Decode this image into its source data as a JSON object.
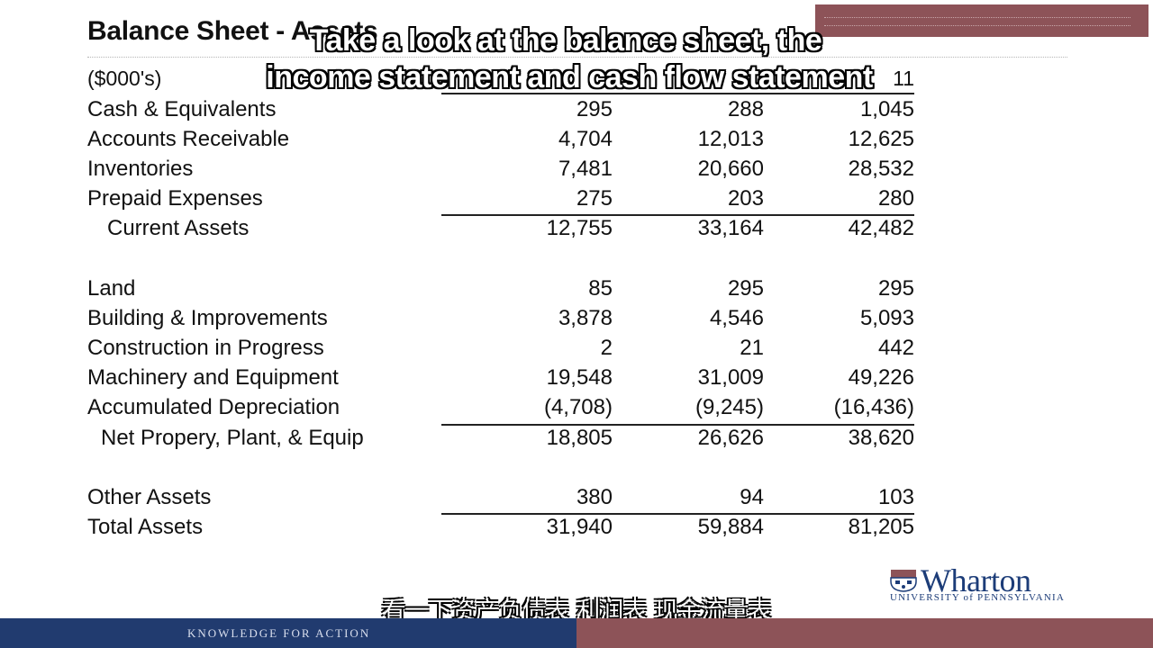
{
  "slide": {
    "title": "Balance Sheet - Assets",
    "units": "($000's)",
    "column_headers": [
      "",
      "",
      "11"
    ]
  },
  "rows": [
    {
      "label": "Cash & Equivalents",
      "values": [
        "295",
        "288",
        "1,045"
      ]
    },
    {
      "label": "Accounts Receivable",
      "values": [
        "4,704",
        "12,013",
        "12,625"
      ]
    },
    {
      "label": "Inventories",
      "values": [
        "7,481",
        "20,660",
        "28,532"
      ]
    },
    {
      "label": "Prepaid Expenses",
      "values": [
        "275",
        "203",
        "280"
      ]
    },
    {
      "label": "Current Assets",
      "values": [
        "12,755",
        "33,164",
        "42,482"
      ]
    },
    {
      "label": "Land",
      "values": [
        "85",
        "295",
        "295"
      ]
    },
    {
      "label": "Building & Improvements",
      "values": [
        "3,878",
        "4,546",
        "5,093"
      ]
    },
    {
      "label": "Construction in Progress",
      "values": [
        "2",
        "21",
        "442"
      ]
    },
    {
      "label": "Machinery and Equipment",
      "values": [
        "19,548",
        "31,009",
        "49,226"
      ]
    },
    {
      "label": "Accumulated Depreciation",
      "values": [
        "(4,708)",
        "(9,245)",
        "(16,436)"
      ]
    },
    {
      "label": "Net Propery, Plant, & Equip",
      "values": [
        "18,805",
        "26,626",
        "38,620"
      ]
    },
    {
      "label": "Other Assets",
      "values": [
        "380",
        "94",
        "103"
      ]
    },
    {
      "label": "Total Assets",
      "values": [
        "31,940",
        "59,884",
        "81,205"
      ]
    }
  ],
  "subtitles": {
    "en_line1": "Take a look at the balance sheet, the",
    "en_line2": "income statement and cash flow statement",
    "zh": "看一下资产负债表 利润表 现金流量表"
  },
  "logo": {
    "brand": "Wharton",
    "university": "UNIVERSITY of PENNSYLVANIA"
  },
  "footer": {
    "tagline": "KNOWLEDGE FOR ACTION"
  },
  "colors": {
    "maroon": "#8d5358",
    "navy": "#213b6f",
    "logo_blue": "#1c3c78"
  }
}
